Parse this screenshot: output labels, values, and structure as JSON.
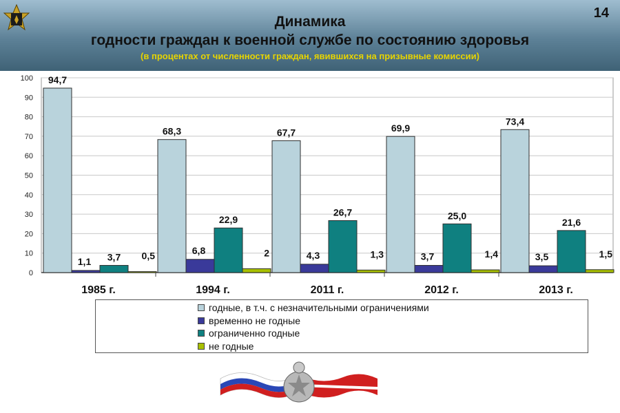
{
  "header": {
    "page_number": "14",
    "title_line1": "Динамика",
    "title_line2": "годности граждан к военной службе по состоянию здоровья",
    "subtitle": "(в процентах от численности граждан, явившихся на призывные комиссии)"
  },
  "chart_data": {
    "type": "bar",
    "title": "Динамика годности граждан к военной службе по состоянию здоровья",
    "subtitle": "(в процентах от численности граждан, явившихся на призывные комиссии)",
    "categories": [
      "1985 г.",
      "1994 г.",
      "2011 г.",
      "2012 г.",
      "2013 г."
    ],
    "series": [
      {
        "name": "годные, в т.ч. с незначительными ограничениями",
        "color": "#b9d3dc",
        "values": [
          94.7,
          68.3,
          67.7,
          69.9,
          73.4
        ],
        "labels": [
          "94,7",
          "68,3",
          "67,7",
          "69,9",
          "73,4"
        ]
      },
      {
        "name": "временно не годные",
        "color": "#3a3a9a",
        "values": [
          1.1,
          6.8,
          4.3,
          3.7,
          3.5
        ],
        "labels": [
          "1,1",
          "6,8",
          "4,3",
          "3,7",
          "3,5"
        ]
      },
      {
        "name": "ограниченно годные",
        "color": "#0f8080",
        "values": [
          3.7,
          22.9,
          26.7,
          25.0,
          21.6
        ],
        "labels": [
          "3,7",
          "22,9",
          "26,7",
          "25,0",
          "21,6"
        ]
      },
      {
        "name": "не годные",
        "color": "#a8c000",
        "values": [
          0.5,
          2,
          1.3,
          1.4,
          1.5
        ],
        "labels": [
          "0,5",
          "2",
          "1,3",
          "1,4",
          "1,5"
        ]
      }
    ],
    "ylim": [
      0,
      100
    ],
    "yticks": [
      0,
      10,
      20,
      30,
      40,
      50,
      60,
      70,
      80,
      90,
      100
    ],
    "grid": true,
    "legend_position": "bottom"
  }
}
